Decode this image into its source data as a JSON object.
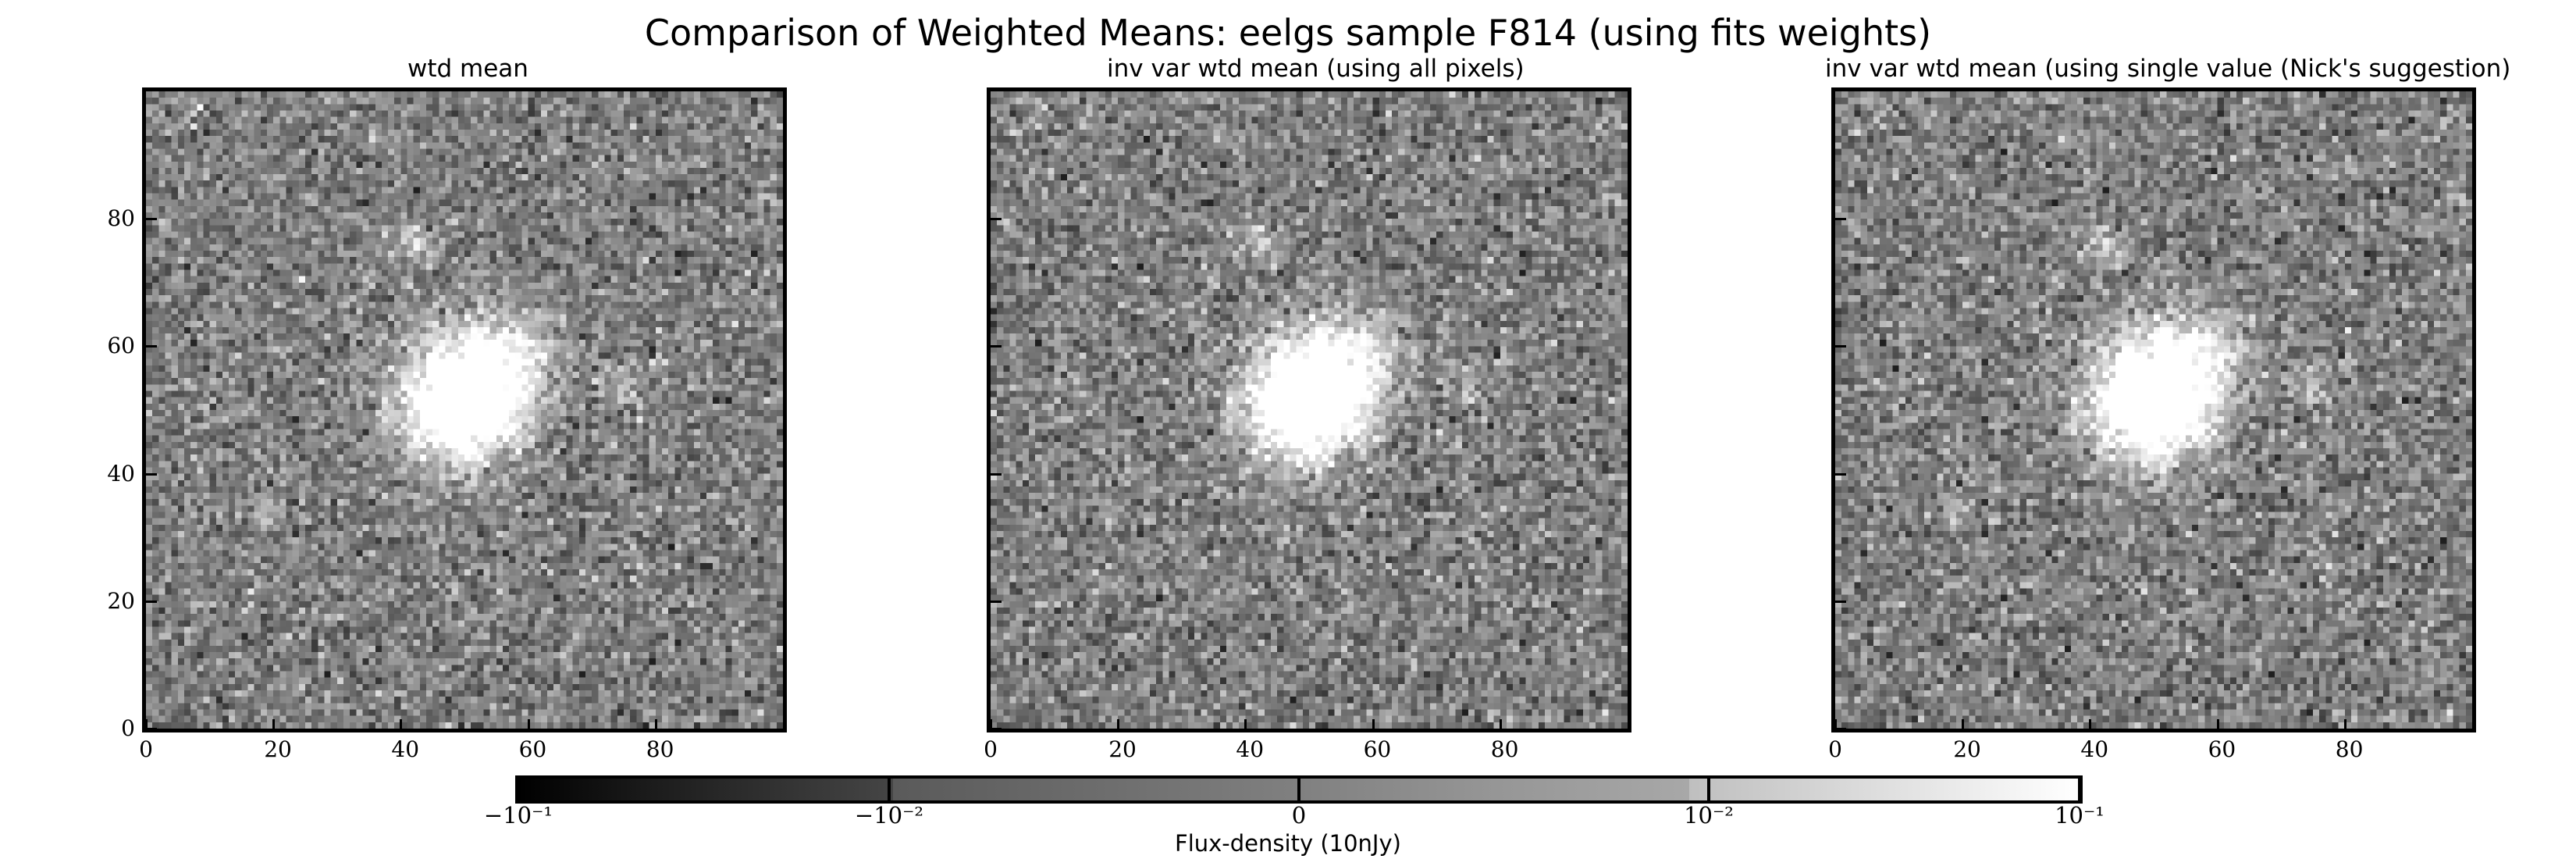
{
  "suptitle": "Comparison of Weighted Means: eelgs sample F814 (using fits weights)",
  "chart_data": {
    "type": "heatmap",
    "colormap": "gray",
    "color_scale": "symlog",
    "panels": [
      {
        "title": "wtd mean",
        "xlim": [
          0,
          100
        ],
        "ylim": [
          0,
          100
        ],
        "xticks": [
          "0",
          "20",
          "40",
          "60",
          "80"
        ],
        "yticks": [
          "0",
          "20",
          "40",
          "60",
          "80"
        ],
        "sources": [
          {
            "x": 49,
            "y": 51,
            "peak": 1.0,
            "sigma": 6.5
          },
          {
            "x": 56,
            "y": 58,
            "peak": 0.35,
            "sigma": 5
          },
          {
            "x": 42,
            "y": 75,
            "peak": 0.35,
            "sigma": 2.2
          },
          {
            "x": 18,
            "y": 34,
            "peak": 0.25,
            "sigma": 2
          },
          {
            "x": 74,
            "y": 53,
            "peak": 0.18,
            "sigma": 2.5
          }
        ]
      },
      {
        "title": "inv var wtd mean (using all pixels)",
        "xlim": [
          0,
          100
        ],
        "ylim": [
          0,
          100
        ],
        "xticks": [
          "0",
          "20",
          "40",
          "60",
          "80"
        ],
        "yticks": [],
        "sources": [
          {
            "x": 49,
            "y": 51,
            "peak": 1.0,
            "sigma": 6.5
          },
          {
            "x": 56,
            "y": 58,
            "peak": 0.35,
            "sigma": 5
          },
          {
            "x": 42,
            "y": 75,
            "peak": 0.3,
            "sigma": 2.2
          },
          {
            "x": 18,
            "y": 34,
            "peak": 0.22,
            "sigma": 2
          },
          {
            "x": 74,
            "y": 53,
            "peak": 0.15,
            "sigma": 2.5
          }
        ]
      },
      {
        "title": "inv var wtd mean (using single value (Nick's suggestion)",
        "xlim": [
          0,
          100
        ],
        "ylim": [
          0,
          100
        ],
        "xticks": [
          "0",
          "20",
          "40",
          "60",
          "80"
        ],
        "yticks": [],
        "sources": [
          {
            "x": 49,
            "y": 51,
            "peak": 1.0,
            "sigma": 6.5
          },
          {
            "x": 56,
            "y": 58,
            "peak": 0.35,
            "sigma": 5
          },
          {
            "x": 42,
            "y": 75,
            "peak": 0.35,
            "sigma": 2.2
          },
          {
            "x": 18,
            "y": 34,
            "peak": 0.25,
            "sigma": 2
          },
          {
            "x": 74,
            "y": 53,
            "peak": 0.18,
            "sigma": 2.5
          }
        ]
      }
    ],
    "colorbar": {
      "label": "Flux-density (10nJy)",
      "tick_labels": [
        "−10⁻¹",
        "−10⁻²",
        "0",
        "10⁻²",
        "10⁻¹"
      ],
      "tick_values": [
        -0.1,
        -0.01,
        0,
        0.01,
        0.1
      ]
    }
  }
}
